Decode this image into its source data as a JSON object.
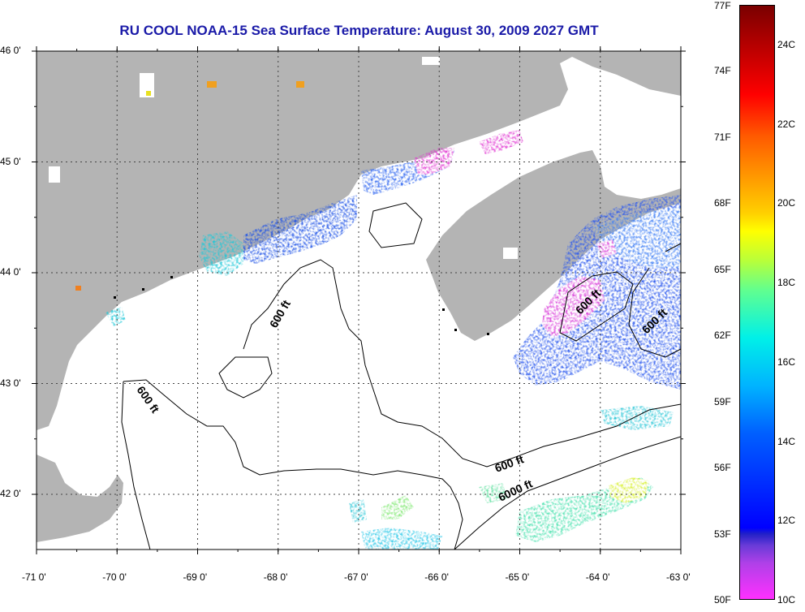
{
  "title": "RU COOL  NOAA-15  Sea Surface Temperature:  August 30, 2009 2027 GMT",
  "lat_labels": [
    {
      "value": 46.0,
      "text": "46 0'"
    },
    {
      "value": 45.0,
      "text": "45 0'"
    },
    {
      "value": 44.0,
      "text": "44 0'"
    },
    {
      "value": 43.0,
      "text": "43 0'"
    },
    {
      "value": 42.0,
      "text": "42 0'"
    }
  ],
  "lon_labels": [
    {
      "value": -71,
      "text": "-71 0'"
    },
    {
      "value": -70,
      "text": "-70 0'"
    },
    {
      "value": -69,
      "text": "-69 0'"
    },
    {
      "value": -68,
      "text": "-68 0'"
    },
    {
      "value": -67,
      "text": "-67 0'"
    },
    {
      "value": -66,
      "text": "-66 0'"
    },
    {
      "value": -65,
      "text": "-65 0'"
    },
    {
      "value": -64,
      "text": "-64 0'"
    },
    {
      "value": -63,
      "text": "-63 0'"
    }
  ],
  "depth_labels": [
    "600 ft",
    "600 ft",
    "600 ft",
    "600 ft",
    "600 ft",
    "6000 ft"
  ],
  "colorbar": {
    "fahrenheit": [
      "77F",
      "74F",
      "71F",
      "68F",
      "65F",
      "62F",
      "59F",
      "56F",
      "53F",
      "50F"
    ],
    "celsius": [
      "24C",
      "22C",
      "20C",
      "18C",
      "16C",
      "14C",
      "12C",
      "10C"
    ]
  },
  "colors": {
    "land": "#b4b4b4",
    "ocean": "#ffffff",
    "title": "#1a1aa8"
  }
}
